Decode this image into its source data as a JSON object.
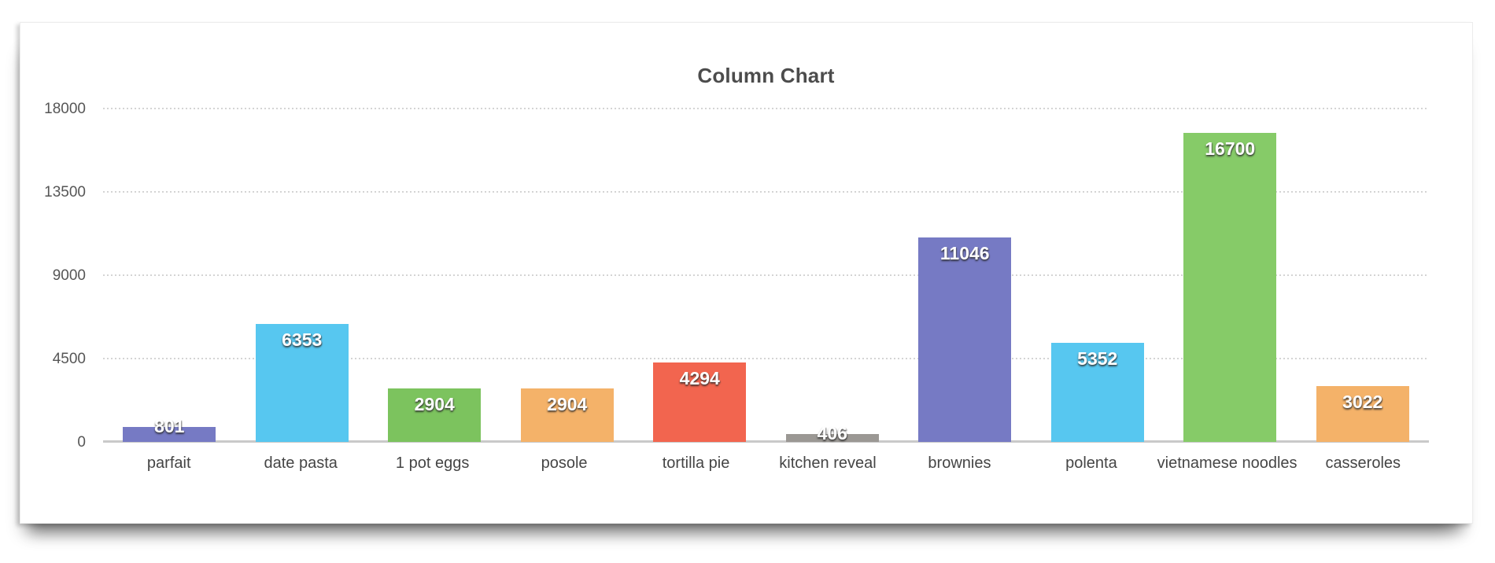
{
  "chart_data": {
    "type": "bar",
    "title": "Column Chart",
    "categories": [
      "parfait",
      "date pasta",
      "1 pot eggs",
      "posole",
      "tortilla pie",
      "kitchen reveal",
      "brownies",
      "polenta",
      "vietnamese noodles",
      "casseroles"
    ],
    "values": [
      801,
      6353,
      2904,
      2904,
      4294,
      406,
      11046,
      5352,
      16700,
      3022
    ],
    "value_labels": [
      "801",
      "6353",
      "2904",
      "2904",
      "4294",
      "406",
      "11046",
      "5352",
      "16700",
      "3022"
    ],
    "bar_colors": [
      "#767ac4",
      "#57c7f0",
      "#7cc35e",
      "#f4b269",
      "#f2654f",
      "#9b9894",
      "#767ac4",
      "#57c7f0",
      "#86cb68",
      "#f4b269"
    ],
    "xlabel": "",
    "ylabel": "",
    "ylim": [
      0,
      18000
    ],
    "yticks": [
      0,
      4500,
      9000,
      13500,
      18000
    ],
    "ytick_labels": [
      "0",
      "4500",
      "9000",
      "13500",
      "18000"
    ],
    "grid": "horizontal-dotted",
    "legend": "none",
    "value_label_color": "#ffffff",
    "title_color": "#4c4c4c",
    "axis_text_color": "#565656",
    "gridline_color": "#d4d4d4",
    "axis_line_color": "#c9c9c9"
  }
}
